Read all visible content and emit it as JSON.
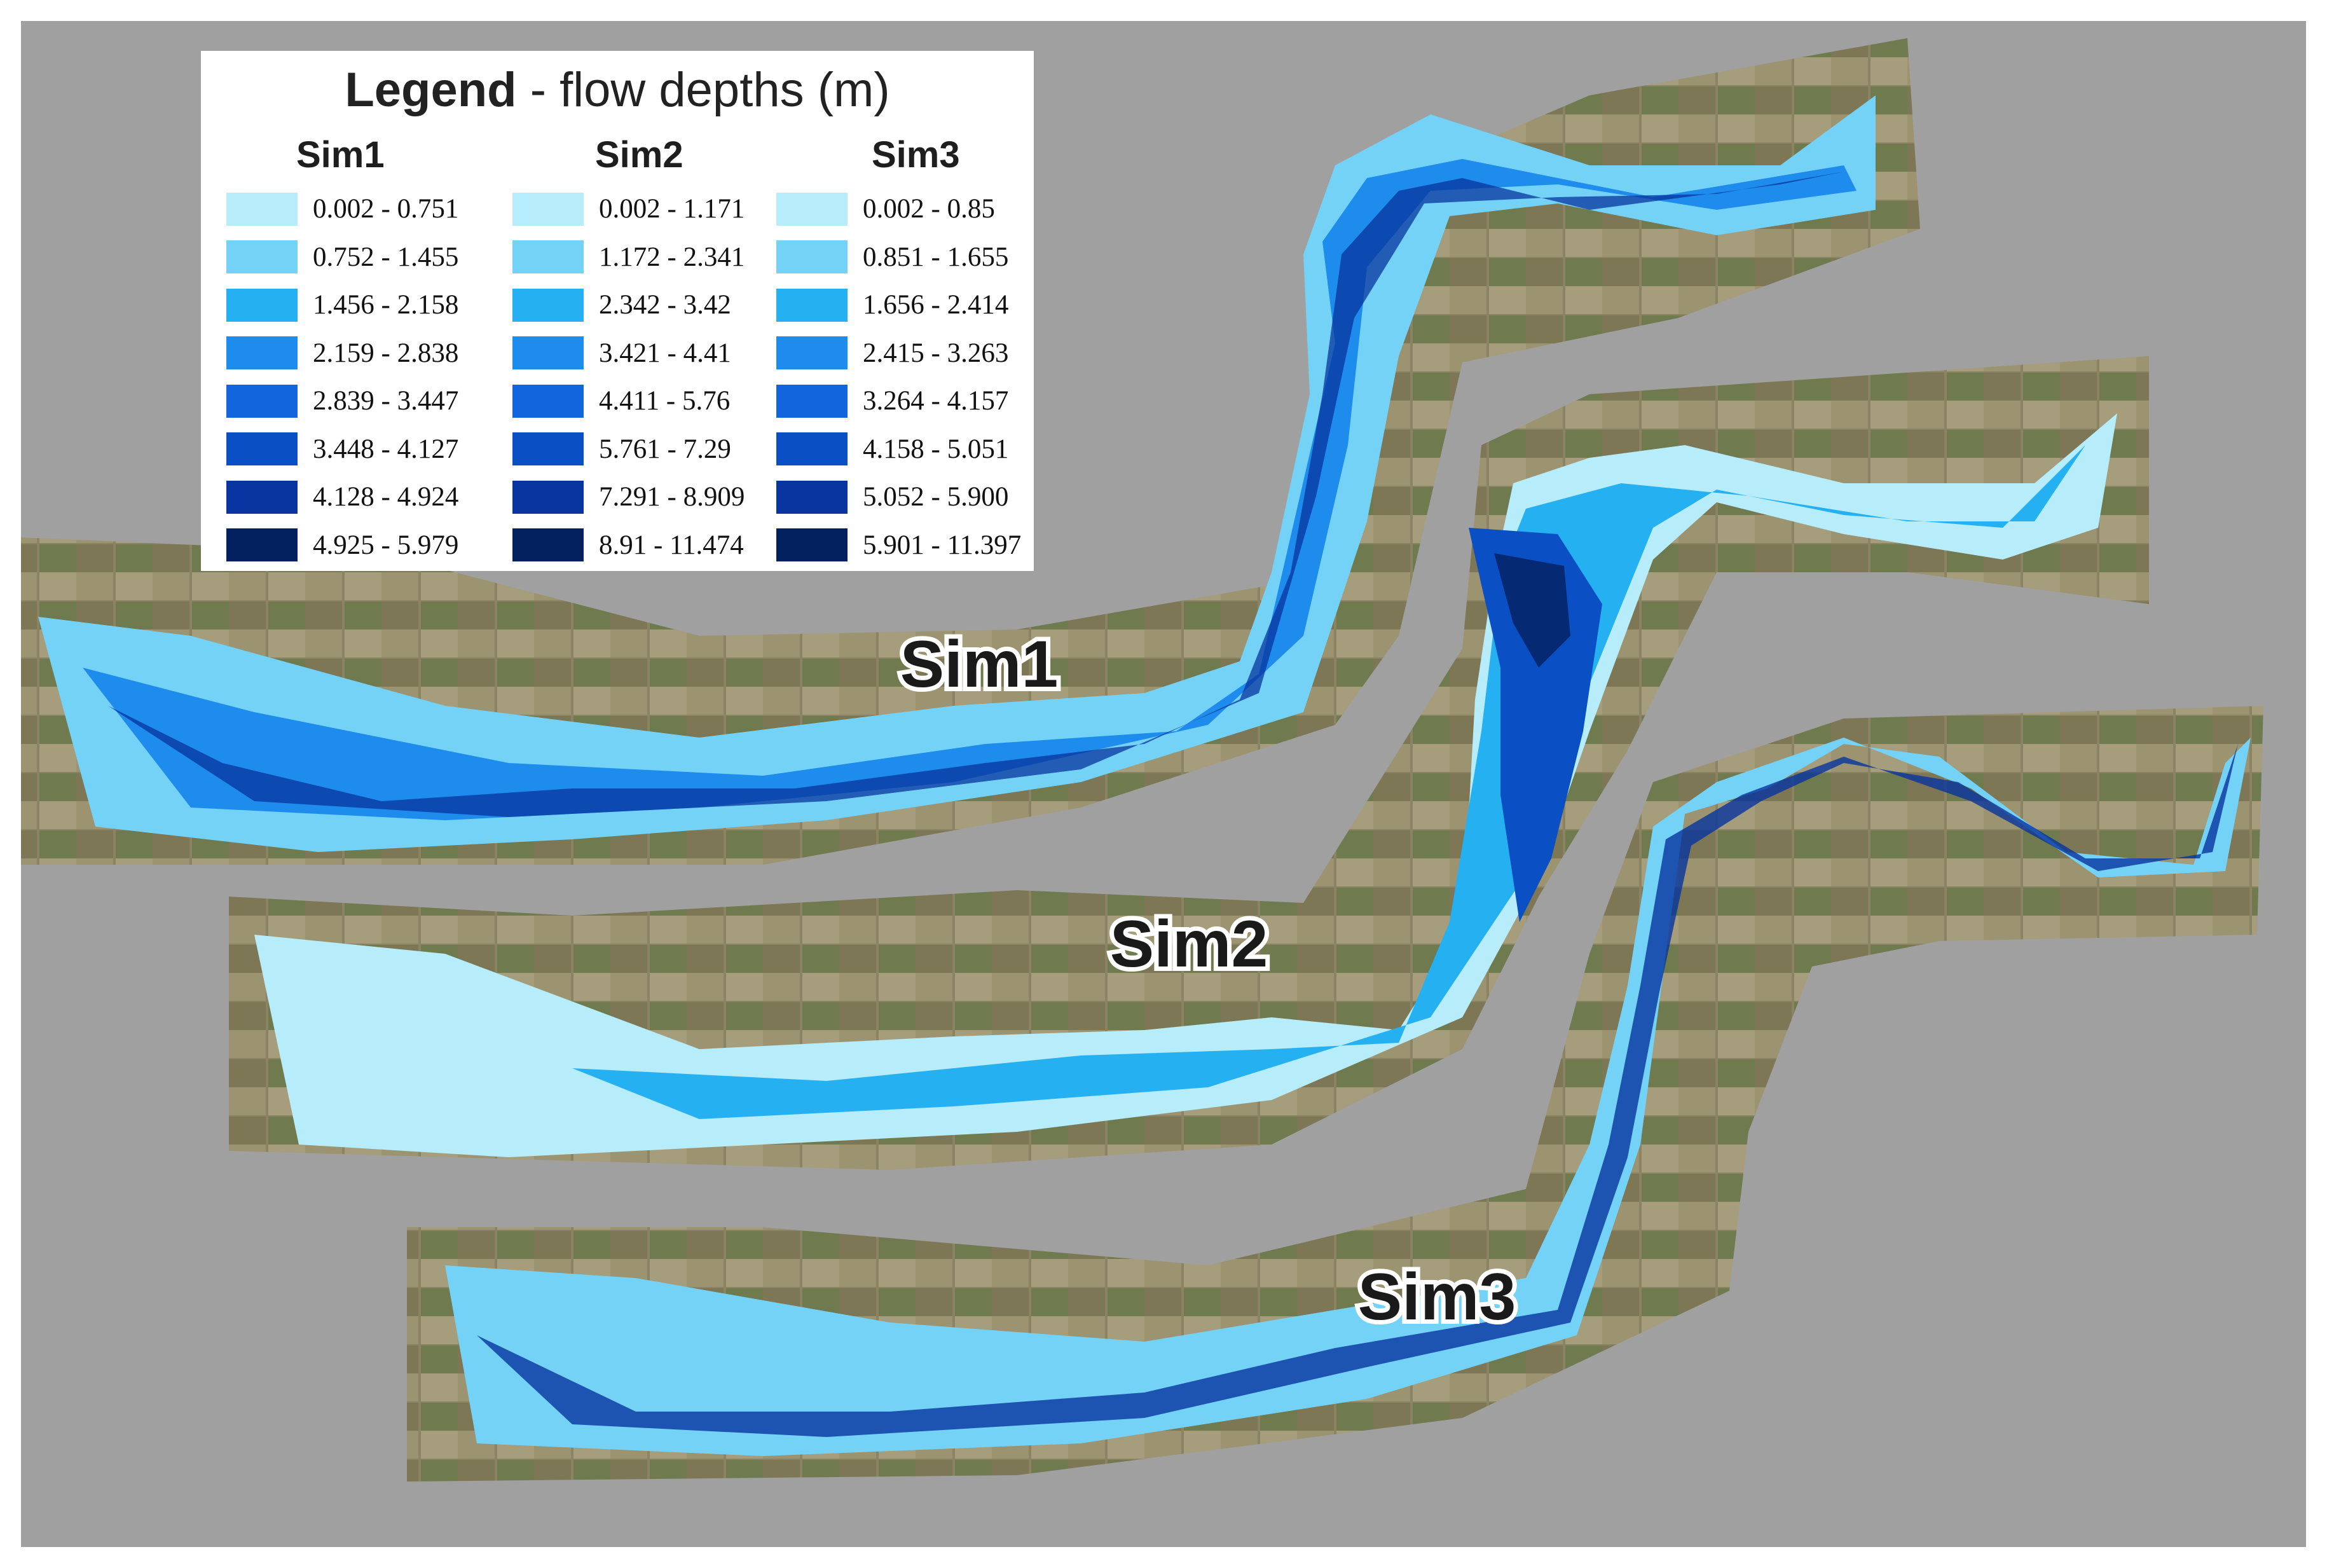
{
  "legend": {
    "title_bold": "Legend",
    "title_rest": " - flow depths (m)",
    "palette": [
      "#b7ecfa",
      "#75d2f7",
      "#25b0f1",
      "#1d8cec",
      "#1265dc",
      "#0a4fc4",
      "#07349f",
      "#04215f"
    ],
    "columns": [
      {
        "name": "Sim1",
        "ranges": [
          "0.002 - 0.751",
          "0.752 - 1.455",
          "1.456 - 2.158",
          "2.159 - 2.838",
          "2.839 - 3.447",
          "3.448 - 4.127",
          "4.128 - 4.924",
          "4.925 - 5.979"
        ]
      },
      {
        "name": "Sim2",
        "ranges": [
          "0.002 - 1.171",
          "1.172 - 2.341",
          "2.342 - 3.42",
          "3.421 - 4.41",
          "4.411 - 5.76",
          "5.761 - 7.29",
          "7.291 - 8.909",
          "8.91 - 11.474"
        ]
      },
      {
        "name": "Sim3",
        "ranges": [
          "0.002 - 0.85",
          "0.851 - 1.655",
          "1.656 - 2.414",
          "2.415 - 3.263",
          "3.264 - 4.157",
          "4.158 - 5.051",
          "5.052 - 5.900",
          "5.901 - 11.397"
        ]
      }
    ]
  },
  "map_labels": {
    "sim1": "Sim1",
    "sim2": "Sim2",
    "sim3": "Sim3"
  },
  "colors": {
    "background": "#a0a0a0",
    "terrain": "#7f7a5a",
    "field_light": "#a9a17a",
    "field_green": "#5f7a45"
  }
}
